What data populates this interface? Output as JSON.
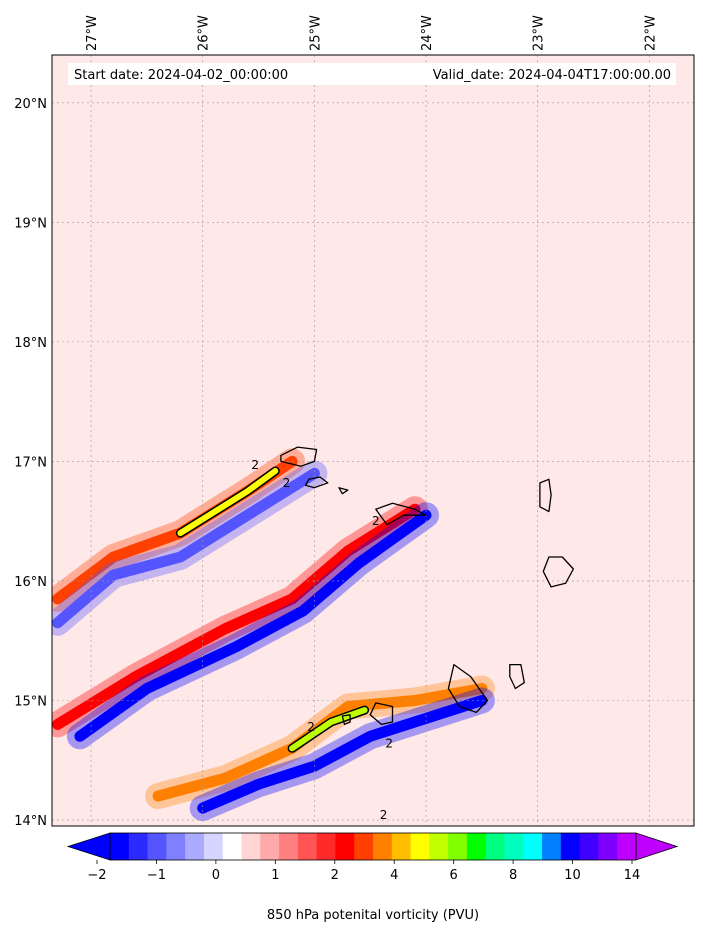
{
  "chart_data": {
    "type": "heatmap",
    "title_left": "Start date: 2024-04-02_00:00:00",
    "title_right": "Valid_date: 2024-04-04T17:00:00.00",
    "colorbar_label": "850 hPa potenital vorticity (PVU)",
    "lon_ticks": [
      {
        "value": -27,
        "label": "27°W"
      },
      {
        "value": -26,
        "label": "26°W"
      },
      {
        "value": -25,
        "label": "25°W"
      },
      {
        "value": -24,
        "label": "24°W"
      },
      {
        "value": -23,
        "label": "23°W"
      },
      {
        "value": -22,
        "label": "22°W"
      }
    ],
    "lat_ticks": [
      {
        "value": 20,
        "label": "20°N"
      },
      {
        "value": 19,
        "label": "19°N"
      },
      {
        "value": 18,
        "label": "18°N"
      },
      {
        "value": 17,
        "label": "17°N"
      },
      {
        "value": 16,
        "label": "16°N"
      },
      {
        "value": 15,
        "label": "15°N"
      },
      {
        "value": 14,
        "label": "14°N"
      }
    ],
    "xlim": [
      -27.35,
      -21.6
    ],
    "ylim": [
      13.95,
      20.4
    ],
    "colorbar_ticks": [
      {
        "value": -2,
        "label": "−2"
      },
      {
        "value": -1,
        "label": "−1"
      },
      {
        "value": 0,
        "label": "0"
      },
      {
        "value": 1,
        "label": "1"
      },
      {
        "value": 2,
        "label": "2"
      },
      {
        "value": 4,
        "label": "4"
      },
      {
        "value": 6,
        "label": "6"
      },
      {
        "value": 8,
        "label": "8"
      },
      {
        "value": 10,
        "label": "10"
      },
      {
        "value": 14,
        "label": "14"
      }
    ],
    "colorbar_colors": [
      "#0000ff",
      "#2b2bff",
      "#5555ff",
      "#8080ff",
      "#aaaaff",
      "#d5d5ff",
      "#ffffff",
      "#ffd5d5",
      "#ffaaaa",
      "#ff8080",
      "#ff5555",
      "#ff2b2b",
      "#ff0000",
      "#ff4000",
      "#ff8000",
      "#ffbf00",
      "#ffff00",
      "#bfff00",
      "#80ff00",
      "#00ff00",
      "#00ff80",
      "#00ffbf",
      "#00ffff",
      "#0080ff",
      "#0000ff",
      "#4000ff",
      "#8000ff",
      "#bf00ff"
    ],
    "background_color": "#ffe8e8",
    "contour_labels": [
      {
        "lon": -25.53,
        "lat": 16.97,
        "label": "2"
      },
      {
        "lon": -25.25,
        "lat": 16.82,
        "label": "2"
      },
      {
        "lon": -24.45,
        "lat": 16.5,
        "label": "2"
      },
      {
        "lon": -25.03,
        "lat": 14.78,
        "label": "2"
      },
      {
        "lon": -24.33,
        "lat": 14.64,
        "label": "2"
      },
      {
        "lon": -24.38,
        "lat": 14.04,
        "label": "2"
      }
    ],
    "pv_bands": [
      {
        "name": "band-north-positive",
        "value": 2.5,
        "points": [
          [
            -27.3,
            15.85
          ],
          [
            -26.8,
            16.2
          ],
          [
            -26.2,
            16.4
          ],
          [
            -25.6,
            16.75
          ],
          [
            -25.2,
            17.0
          ]
        ]
      },
      {
        "name": "band-north-negative",
        "value": -1.5,
        "points": [
          [
            -27.3,
            15.65
          ],
          [
            -26.8,
            16.05
          ],
          [
            -26.2,
            16.2
          ],
          [
            -25.6,
            16.55
          ],
          [
            -25.0,
            16.9
          ]
        ]
      },
      {
        "name": "band-middle-positive",
        "value": 2.0,
        "points": [
          [
            -27.3,
            14.8
          ],
          [
            -26.6,
            15.2
          ],
          [
            -25.8,
            15.6
          ],
          [
            -25.2,
            15.85
          ],
          [
            -24.7,
            16.25
          ],
          [
            -24.1,
            16.6
          ]
        ]
      },
      {
        "name": "band-middle-negative",
        "value": -2.0,
        "points": [
          [
            -27.1,
            14.7
          ],
          [
            -26.5,
            15.1
          ],
          [
            -25.7,
            15.45
          ],
          [
            -25.1,
            15.75
          ],
          [
            -24.6,
            16.15
          ],
          [
            -24.0,
            16.55
          ]
        ]
      },
      {
        "name": "band-south-positive",
        "value": 3.0,
        "points": [
          [
            -26.4,
            14.2
          ],
          [
            -25.8,
            14.35
          ],
          [
            -25.2,
            14.6
          ],
          [
            -24.7,
            14.95
          ],
          [
            -24.1,
            15.0
          ],
          [
            -23.5,
            15.1
          ]
        ]
      },
      {
        "name": "band-south-negative",
        "value": -2.0,
        "points": [
          [
            -26.0,
            14.1
          ],
          [
            -25.5,
            14.3
          ],
          [
            -25.0,
            14.45
          ],
          [
            -24.5,
            14.7
          ],
          [
            -24.0,
            14.85
          ],
          [
            -23.5,
            15.0
          ]
        ]
      }
    ],
    "islands": [
      {
        "name": "santo-antao",
        "points": [
          [
            -25.3,
            17.05
          ],
          [
            -25.15,
            17.12
          ],
          [
            -24.98,
            17.1
          ],
          [
            -25.0,
            17.0
          ],
          [
            -25.12,
            16.96
          ],
          [
            -25.3,
            17.0
          ]
        ]
      },
      {
        "name": "sao-vicente",
        "points": [
          [
            -25.05,
            16.85
          ],
          [
            -24.95,
            16.87
          ],
          [
            -24.88,
            16.82
          ],
          [
            -25.0,
            16.78
          ],
          [
            -25.08,
            16.8
          ]
        ]
      },
      {
        "name": "santa-luzia",
        "points": [
          [
            -24.78,
            16.78
          ],
          [
            -24.7,
            16.76
          ],
          [
            -24.75,
            16.73
          ]
        ]
      },
      {
        "name": "sao-nicolau",
        "points": [
          [
            -24.45,
            16.6
          ],
          [
            -24.3,
            16.65
          ],
          [
            -24.1,
            16.6
          ],
          [
            -24.0,
            16.55
          ],
          [
            -24.2,
            16.55
          ],
          [
            -24.35,
            16.47
          ]
        ]
      },
      {
        "name": "sal",
        "points": [
          [
            -22.98,
            16.82
          ],
          [
            -22.9,
            16.85
          ],
          [
            -22.88,
            16.72
          ],
          [
            -22.9,
            16.58
          ],
          [
            -22.98,
            16.62
          ]
        ]
      },
      {
        "name": "boa-vista",
        "points": [
          [
            -22.9,
            16.2
          ],
          [
            -22.78,
            16.2
          ],
          [
            -22.68,
            16.1
          ],
          [
            -22.75,
            15.98
          ],
          [
            -22.88,
            15.95
          ],
          [
            -22.95,
            16.08
          ]
        ]
      },
      {
        "name": "maio",
        "points": [
          [
            -23.25,
            15.3
          ],
          [
            -23.15,
            15.3
          ],
          [
            -23.12,
            15.15
          ],
          [
            -23.2,
            15.1
          ],
          [
            -23.25,
            15.2
          ]
        ]
      },
      {
        "name": "santiago",
        "points": [
          [
            -23.75,
            15.3
          ],
          [
            -23.6,
            15.2
          ],
          [
            -23.45,
            15.0
          ],
          [
            -23.55,
            14.9
          ],
          [
            -23.7,
            14.95
          ],
          [
            -23.8,
            15.1
          ]
        ]
      },
      {
        "name": "fogo",
        "points": [
          [
            -24.45,
            14.98
          ],
          [
            -24.3,
            14.95
          ],
          [
            -24.3,
            14.82
          ],
          [
            -24.4,
            14.8
          ],
          [
            -24.5,
            14.88
          ]
        ]
      },
      {
        "name": "brava",
        "points": [
          [
            -24.75,
            14.87
          ],
          [
            -24.68,
            14.88
          ],
          [
            -24.68,
            14.82
          ],
          [
            -24.73,
            14.8
          ]
        ]
      }
    ]
  }
}
